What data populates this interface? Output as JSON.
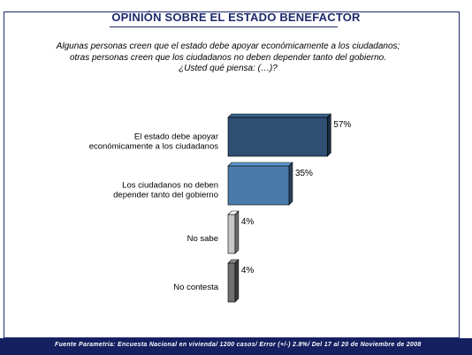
{
  "title": "OPINIÓN SOBRE EL ESTADO BENEFACTOR",
  "question_lines": [
    "Algunas personas creen que el estado debe apoyar económicamente a los ciudadanos;",
    "otras personas creen que los ciudadanos no deben depender tanto del gobierno.",
    "¿Usted qué piensa: (…)?"
  ],
  "footer": "Fuente Parametría: Encuesta Nacional en vivienda/ 1200 casos/ Error (+/-) 2.8%/ Del 17 al 20 de Noviembre de 2008",
  "chart_data": {
    "type": "bar",
    "orientation": "horizontal",
    "categories": [
      [
        "El estado debe apoyar",
        "económicamente a los ciudadanos"
      ],
      [
        "Los ciudadanos no deben",
        "depender tanto del gobierno"
      ],
      [
        "No sabe"
      ],
      [
        "No contesta"
      ]
    ],
    "values": [
      57,
      35,
      4,
      4
    ],
    "value_labels": [
      "57%",
      "35%",
      "4%",
      "4%"
    ],
    "colors": [
      "#2e4e72",
      "#4a7aa8",
      "#c8c8c8",
      "#707070"
    ],
    "grid": false,
    "legend": "none"
  }
}
